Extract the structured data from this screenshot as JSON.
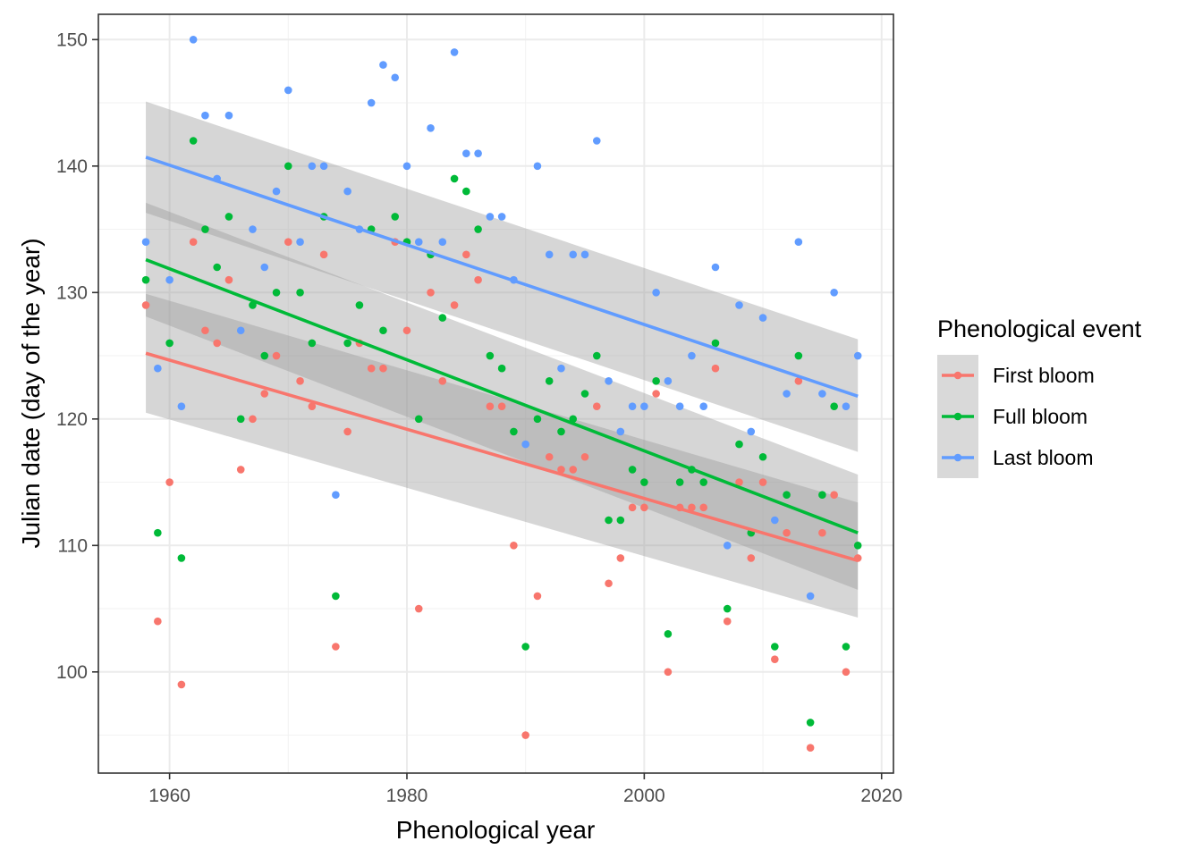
{
  "chart_data": {
    "type": "scatter",
    "xlabel": "Phenological year",
    "ylabel": "Julian date (day of the year)",
    "xlim": [
      1954,
      2021
    ],
    "ylim": [
      92,
      152
    ],
    "x_ticks": [
      1960,
      1980,
      2000,
      2020
    ],
    "y_ticks": [
      100,
      110,
      120,
      130,
      140,
      150
    ],
    "grid": true,
    "legend": {
      "title": "Phenological event",
      "placement": "right",
      "entries": [
        "First bloom",
        "Full bloom",
        "Last bloom"
      ]
    },
    "series": [
      {
        "name": "First bloom",
        "color": "#F8766D",
        "trend": {
          "x": [
            1958,
            2018
          ],
          "y": [
            125.2,
            108.8
          ],
          "ci_at_ends": [
            [
              120.5,
              129.9
            ],
            [
              104.3,
              113.4
            ]
          ]
        },
        "points": [
          [
            1958,
            129
          ],
          [
            1959,
            104
          ],
          [
            1960,
            115
          ],
          [
            1961,
            99
          ],
          [
            1962,
            134
          ],
          [
            1963,
            127
          ],
          [
            1964,
            126
          ],
          [
            1965,
            131
          ],
          [
            1966,
            116
          ],
          [
            1967,
            120
          ],
          [
            1968,
            122
          ],
          [
            1969,
            125
          ],
          [
            1970,
            134
          ],
          [
            1971,
            123
          ],
          [
            1972,
            121
          ],
          [
            1973,
            133
          ],
          [
            1974,
            102
          ],
          [
            1975,
            119
          ],
          [
            1976,
            126
          ],
          [
            1977,
            124
          ],
          [
            1978,
            124
          ],
          [
            1979,
            134
          ],
          [
            1980,
            127
          ],
          [
            1981,
            105
          ],
          [
            1982,
            130
          ],
          [
            1983,
            123
          ],
          [
            1984,
            129
          ],
          [
            1985,
            133
          ],
          [
            1986,
            131
          ],
          [
            1987,
            121
          ],
          [
            1988,
            121
          ],
          [
            1989,
            110
          ],
          [
            1990,
            95
          ],
          [
            1991,
            106
          ],
          [
            1992,
            117
          ],
          [
            1993,
            116
          ],
          [
            1994,
            116
          ],
          [
            1995,
            117
          ],
          [
            1996,
            121
          ],
          [
            1997,
            107
          ],
          [
            1998,
            109
          ],
          [
            1999,
            113
          ],
          [
            2000,
            113
          ],
          [
            2001,
            122
          ],
          [
            2002,
            100
          ],
          [
            2003,
            113
          ],
          [
            2004,
            113
          ],
          [
            2005,
            113
          ],
          [
            2006,
            124
          ],
          [
            2007,
            104
          ],
          [
            2008,
            115
          ],
          [
            2009,
            109
          ],
          [
            2010,
            115
          ],
          [
            2011,
            101
          ],
          [
            2012,
            111
          ],
          [
            2013,
            123
          ],
          [
            2014,
            94
          ],
          [
            2015,
            111
          ],
          [
            2016,
            114
          ],
          [
            2017,
            100
          ],
          [
            2018,
            109
          ]
        ]
      },
      {
        "name": "Full bloom",
        "color": "#00BA38",
        "trend": {
          "x": [
            1958,
            2018
          ],
          "y": [
            132.6,
            111.0
          ],
          "ci_at_ends": [
            [
              128.1,
              137.1
            ],
            [
              106.5,
              115.6
            ]
          ]
        },
        "points": [
          [
            1958,
            131
          ],
          [
            1959,
            111
          ],
          [
            1960,
            126
          ],
          [
            1961,
            109
          ],
          [
            1962,
            142
          ],
          [
            1963,
            135
          ],
          [
            1964,
            132
          ],
          [
            1965,
            136
          ],
          [
            1966,
            120
          ],
          [
            1967,
            129
          ],
          [
            1968,
            125
          ],
          [
            1969,
            130
          ],
          [
            1970,
            140
          ],
          [
            1971,
            130
          ],
          [
            1972,
            126
          ],
          [
            1973,
            136
          ],
          [
            1974,
            106
          ],
          [
            1975,
            126
          ],
          [
            1976,
            129
          ],
          [
            1977,
            135
          ],
          [
            1978,
            127
          ],
          [
            1979,
            136
          ],
          [
            1980,
            134
          ],
          [
            1981,
            120
          ],
          [
            1982,
            133
          ],
          [
            1983,
            128
          ],
          [
            1984,
            139
          ],
          [
            1985,
            138
          ],
          [
            1986,
            135
          ],
          [
            1987,
            125
          ],
          [
            1988,
            124
          ],
          [
            1989,
            119
          ],
          [
            1990,
            102
          ],
          [
            1991,
            120
          ],
          [
            1992,
            123
          ],
          [
            1993,
            119
          ],
          [
            1994,
            120
          ],
          [
            1995,
            122
          ],
          [
            1996,
            125
          ],
          [
            1997,
            112
          ],
          [
            1998,
            112
          ],
          [
            1999,
            116
          ],
          [
            2000,
            115
          ],
          [
            2001,
            123
          ],
          [
            2002,
            103
          ],
          [
            2003,
            115
          ],
          [
            2004,
            116
          ],
          [
            2005,
            115
          ],
          [
            2006,
            126
          ],
          [
            2007,
            105
          ],
          [
            2008,
            118
          ],
          [
            2009,
            111
          ],
          [
            2010,
            117
          ],
          [
            2011,
            102
          ],
          [
            2012,
            114
          ],
          [
            2013,
            125
          ],
          [
            2014,
            96
          ],
          [
            2015,
            114
          ],
          [
            2016,
            121
          ],
          [
            2017,
            102
          ],
          [
            2018,
            110
          ]
        ]
      },
      {
        "name": "Last bloom",
        "color": "#619CFF",
        "trend": {
          "x": [
            1958,
            2018
          ],
          "y": [
            140.7,
            121.8
          ],
          "ci_at_ends": [
            [
              136.3,
              145.1
            ],
            [
              117.4,
              126.3
            ]
          ]
        },
        "points": [
          [
            1958,
            134
          ],
          [
            1959,
            124
          ],
          [
            1960,
            131
          ],
          [
            1961,
            121
          ],
          [
            1962,
            150
          ],
          [
            1963,
            144
          ],
          [
            1964,
            139
          ],
          [
            1965,
            144
          ],
          [
            1966,
            127
          ],
          [
            1967,
            135
          ],
          [
            1968,
            132
          ],
          [
            1969,
            138
          ],
          [
            1970,
            146
          ],
          [
            1971,
            134
          ],
          [
            1972,
            140
          ],
          [
            1973,
            140
          ],
          [
            1974,
            114
          ],
          [
            1975,
            138
          ],
          [
            1976,
            135
          ],
          [
            1977,
            145
          ],
          [
            1978,
            148
          ],
          [
            1979,
            147
          ],
          [
            1980,
            140
          ],
          [
            1981,
            134
          ],
          [
            1982,
            143
          ],
          [
            1983,
            134
          ],
          [
            1984,
            149
          ],
          [
            1985,
            141
          ],
          [
            1986,
            141
          ],
          [
            1987,
            136
          ],
          [
            1988,
            136
          ],
          [
            1989,
            131
          ],
          [
            1990,
            118
          ],
          [
            1991,
            140
          ],
          [
            1992,
            133
          ],
          [
            1993,
            124
          ],
          [
            1994,
            133
          ],
          [
            1995,
            133
          ],
          [
            1996,
            142
          ],
          [
            1997,
            123
          ],
          [
            1998,
            119
          ],
          [
            1999,
            121
          ],
          [
            2000,
            121
          ],
          [
            2001,
            130
          ],
          [
            2002,
            123
          ],
          [
            2003,
            121
          ],
          [
            2004,
            125
          ],
          [
            2005,
            121
          ],
          [
            2006,
            132
          ],
          [
            2007,
            110
          ],
          [
            2008,
            129
          ],
          [
            2009,
            119
          ],
          [
            2010,
            128
          ],
          [
            2011,
            112
          ],
          [
            2012,
            122
          ],
          [
            2013,
            134
          ],
          [
            2014,
            106
          ],
          [
            2015,
            122
          ],
          [
            2016,
            130
          ],
          [
            2017,
            121
          ],
          [
            2018,
            125
          ]
        ]
      }
    ]
  }
}
